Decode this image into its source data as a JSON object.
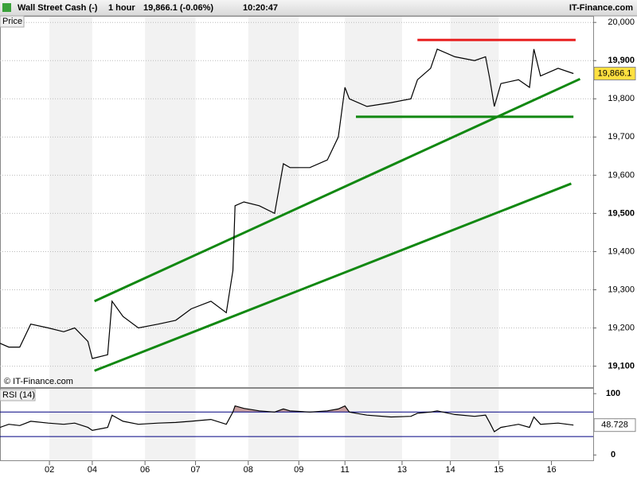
{
  "header": {
    "title": "Wall Street Cash (-)",
    "interval": "1 hour",
    "quote": "19,866.1 (-0.06%)",
    "time": "10:20:47",
    "brand": "IT-Finance.com",
    "copyright": "© IT-Finance.com"
  },
  "chart_data": [
    {
      "type": "line",
      "label": "Price",
      "color": "#000000",
      "x": [
        0,
        4,
        9,
        14,
        22,
        29,
        34,
        40,
        42,
        49,
        51,
        56,
        63,
        72,
        80,
        87,
        96,
        103,
        106,
        107,
        111,
        118,
        125,
        129,
        132,
        141,
        149,
        154,
        157,
        159,
        167,
        178,
        187,
        190,
        196,
        199,
        207,
        216,
        221,
        223,
        225,
        228,
        236,
        241,
        243,
        246,
        254,
        261
      ],
      "values": [
        19160,
        19150,
        19150,
        19210,
        19200,
        19190,
        19200,
        19165,
        19120,
        19130,
        19270,
        19230,
        19200,
        19210,
        19220,
        19250,
        19270,
        19240,
        19350,
        19520,
        19530,
        19520,
        19500,
        19630,
        19620,
        19620,
        19640,
        19700,
        19830,
        19800,
        19780,
        19790,
        19800,
        19850,
        19880,
        19930,
        19910,
        19900,
        19910,
        19850,
        19780,
        19840,
        19850,
        19830,
        19930,
        19860,
        19880,
        19866.1
      ],
      "last_value_label": "19,866.1",
      "xlim": [
        0,
        270
      ],
      "xticks": [
        {
          "value": 22.5,
          "label": "02"
        },
        {
          "value": 42,
          "label": "04"
        },
        {
          "value": 66,
          "label": "06"
        },
        {
          "value": 89,
          "label": "07"
        },
        {
          "value": 113,
          "label": "08"
        },
        {
          "value": 136,
          "label": "09"
        },
        {
          "value": 157,
          "label": "11"
        },
        {
          "value": 183,
          "label": "13"
        },
        {
          "value": 205,
          "label": "14"
        },
        {
          "value": 227,
          "label": "15"
        },
        {
          "value": 251,
          "label": "16"
        }
      ],
      "ylim": [
        19045,
        20015
      ],
      "yticks": [
        {
          "value": 19100,
          "label": "19,100"
        },
        {
          "value": 19200,
          "label": "19,200"
        },
        {
          "value": 19300,
          "label": "19,300"
        },
        {
          "value": 19400,
          "label": "19,400"
        },
        {
          "value": 19500,
          "label": "19,500"
        },
        {
          "value": 19600,
          "label": "19,600"
        },
        {
          "value": 19700,
          "label": "19,700"
        },
        {
          "value": 19800,
          "label": "19,800"
        },
        {
          "value": 19900,
          "label": "19,900"
        },
        {
          "value": 20000,
          "label": "20,000"
        }
      ],
      "grid": true,
      "lines": [
        {
          "x": [
            43,
            264
          ],
          "y": [
            19270,
            19852
          ],
          "color": "#118811"
        },
        {
          "x": [
            43,
            260
          ],
          "y": [
            19088,
            19578
          ],
          "color": "#118811"
        },
        {
          "x": [
            162,
            261
          ],
          "y": [
            19753,
            19753
          ],
          "color": "#118811"
        },
        {
          "x": [
            190,
            262
          ],
          "y": [
            19954,
            19954
          ],
          "color": "#e82020"
        }
      ]
    },
    {
      "type": "line",
      "label": "RSI (14)",
      "color": "#000000",
      "x": [
        0,
        4,
        9,
        14,
        22,
        29,
        34,
        40,
        42,
        49,
        51,
        56,
        63,
        72,
        80,
        87,
        96,
        103,
        106,
        107,
        111,
        118,
        125,
        129,
        132,
        141,
        149,
        154,
        157,
        159,
        167,
        178,
        187,
        190,
        196,
        199,
        207,
        216,
        221,
        223,
        225,
        228,
        236,
        241,
        243,
        246,
        254,
        261
      ],
      "values": [
        45,
        50,
        48,
        55,
        52,
        50,
        52,
        45,
        40,
        45,
        65,
        55,
        50,
        52,
        53,
        55,
        58,
        50,
        70,
        80,
        76,
        72,
        70,
        75,
        72,
        70,
        72,
        75,
        80,
        70,
        65,
        62,
        63,
        68,
        70,
        72,
        66,
        63,
        65,
        52,
        38,
        45,
        50,
        45,
        62,
        50,
        52,
        48.728
      ],
      "last_value_label": "48.728",
      "xlim": [
        0,
        270
      ],
      "ylim": [
        -10,
        108
      ],
      "yticks": [
        0,
        100
      ],
      "levels": [
        30,
        70
      ],
      "level_color": "#000080",
      "overbought_fill": "#c8a0a0"
    }
  ]
}
